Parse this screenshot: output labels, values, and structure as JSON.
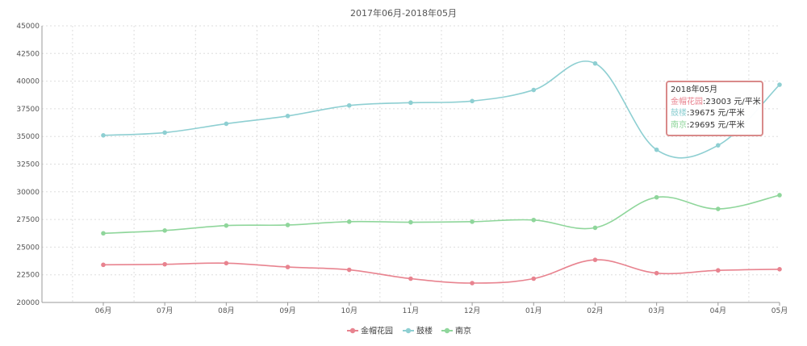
{
  "chart_data": {
    "type": "line",
    "title": "2017年06月-2018年05月",
    "categories": [
      "06月",
      "07月",
      "08月",
      "09月",
      "10月",
      "11月",
      "12月",
      "01月",
      "02月",
      "03月",
      "04月",
      "05月"
    ],
    "ylim": [
      20000,
      45000
    ],
    "yticks": [
      20000,
      22500,
      25000,
      27500,
      30000,
      32500,
      35000,
      37500,
      40000,
      42500,
      45000
    ],
    "grid": true,
    "legend_position": "bottom-center",
    "series": [
      {
        "name": "金帽花园",
        "color": "#e8838f",
        "values": [
          23400,
          23450,
          23550,
          23200,
          22950,
          22150,
          21750,
          22150,
          23850,
          22650,
          22900,
          23003
        ]
      },
      {
        "name": "鼓楼",
        "color": "#8ecfd2",
        "values": [
          35100,
          35350,
          36150,
          36850,
          37800,
          38050,
          38200,
          39200,
          41600,
          33800,
          34200,
          39675
        ]
      },
      {
        "name": "南京",
        "color": "#8fd69b",
        "values": [
          26250,
          26500,
          26950,
          27000,
          27300,
          27250,
          27300,
          27450,
          26750,
          29500,
          28450,
          29695
        ]
      }
    ],
    "tooltip": {
      "title": "2018年05月",
      "rows": [
        {
          "label": "金帽花园",
          "value": ":23003 元/平米"
        },
        {
          "label": "鼓楼",
          "value": ":39675 元/平米"
        },
        {
          "label": "南京",
          "value": ":29695 元/平米"
        }
      ]
    }
  }
}
